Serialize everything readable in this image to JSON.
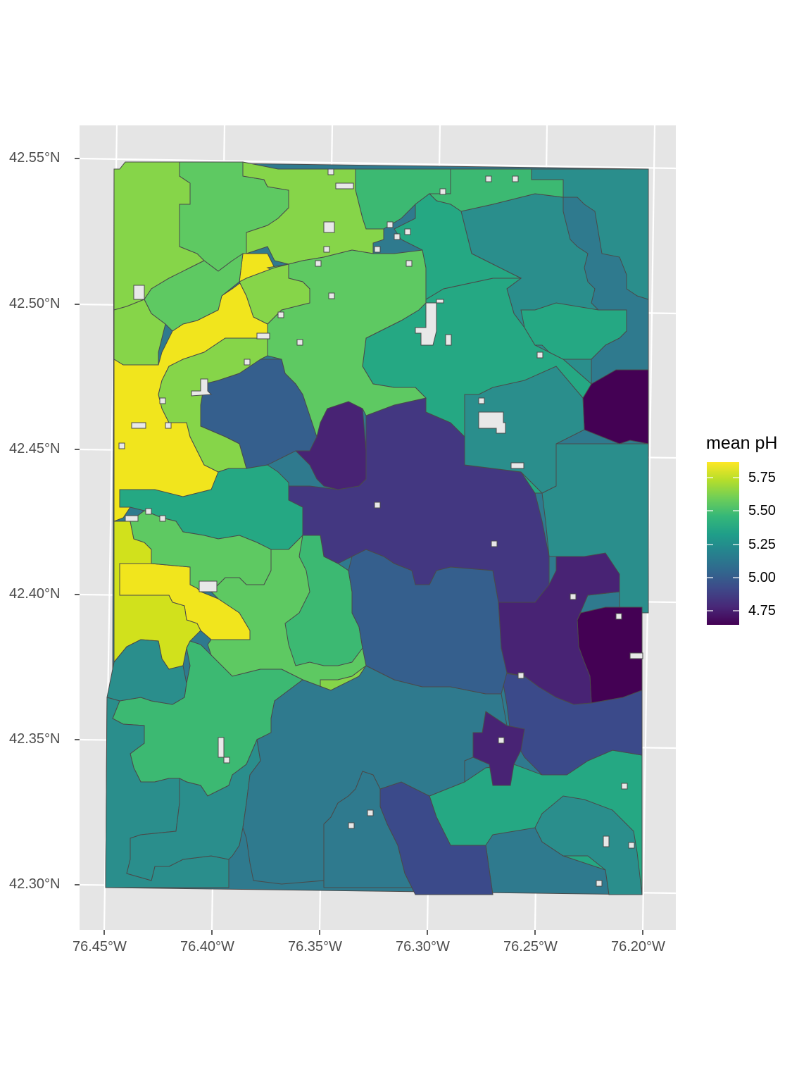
{
  "map": {
    "y_ticks": [
      "42.55°N",
      "42.50°N",
      "42.45°N",
      "42.40°N",
      "42.35°N",
      "42.30°N"
    ],
    "x_ticks": [
      "76.45°W",
      "76.40°W",
      "76.35°W",
      "76.30°W",
      "76.25°W",
      "76.20°W"
    ],
    "colors": {
      "panel": "#e5e5e5",
      "grid": "#ffffff",
      "border": "#4a4a4a",
      "v575": "#f1e51d",
      "v560": "#d1e11c",
      "v550": "#86d549",
      "v540": "#5ec962",
      "v530": "#3cb972",
      "v520": "#25a883",
      "v510": "#2a8e8c",
      "v500": "#2f7a8e",
      "v490": "#355f8d",
      "v480": "#3b4a8a",
      "v470": "#433781",
      "v460": "#482374",
      "v450": "#440154",
      "na": "#e8e8e8"
    }
  },
  "legend": {
    "title": "mean pH",
    "labels": [
      "5.75",
      "5.50",
      "5.25",
      "5.00",
      "4.75"
    ],
    "gradient": [
      "#fde725",
      "#b5de2b",
      "#6ece58",
      "#35b779",
      "#1f9e89",
      "#26828e",
      "#31688e",
      "#3e4989",
      "#482878",
      "#440154"
    ]
  }
}
